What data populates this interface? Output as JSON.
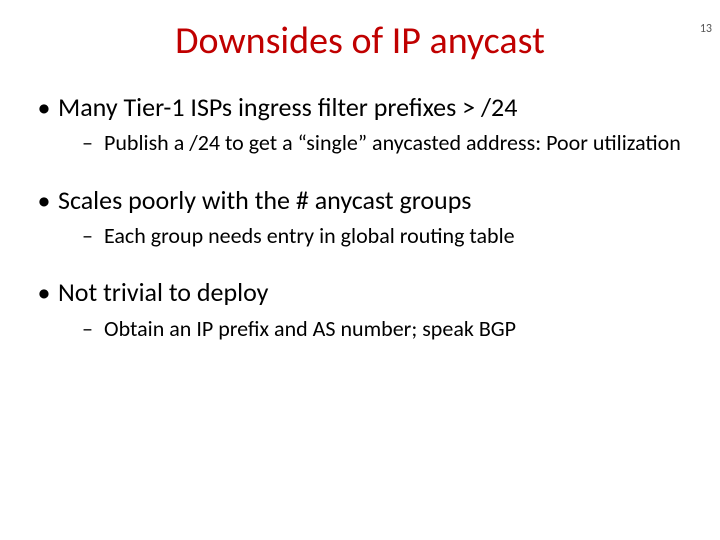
{
  "page_number": "13",
  "title": "Downsides of IP anycast",
  "title_color": "#c00000",
  "bullets": [
    {
      "text": "Many Tier-1 ISPs ingress filter prefixes > /24",
      "sub": [
        "Publish a /24 to get a “single” anycasted address: Poor utilization"
      ]
    },
    {
      "text": "Scales poorly with the # anycast groups",
      "sub": [
        "Each group needs entry in global routing table"
      ]
    },
    {
      "text": "Not trivial to deploy",
      "sub": [
        " Obtain an IP prefix and AS number; speak BGP"
      ]
    }
  ]
}
